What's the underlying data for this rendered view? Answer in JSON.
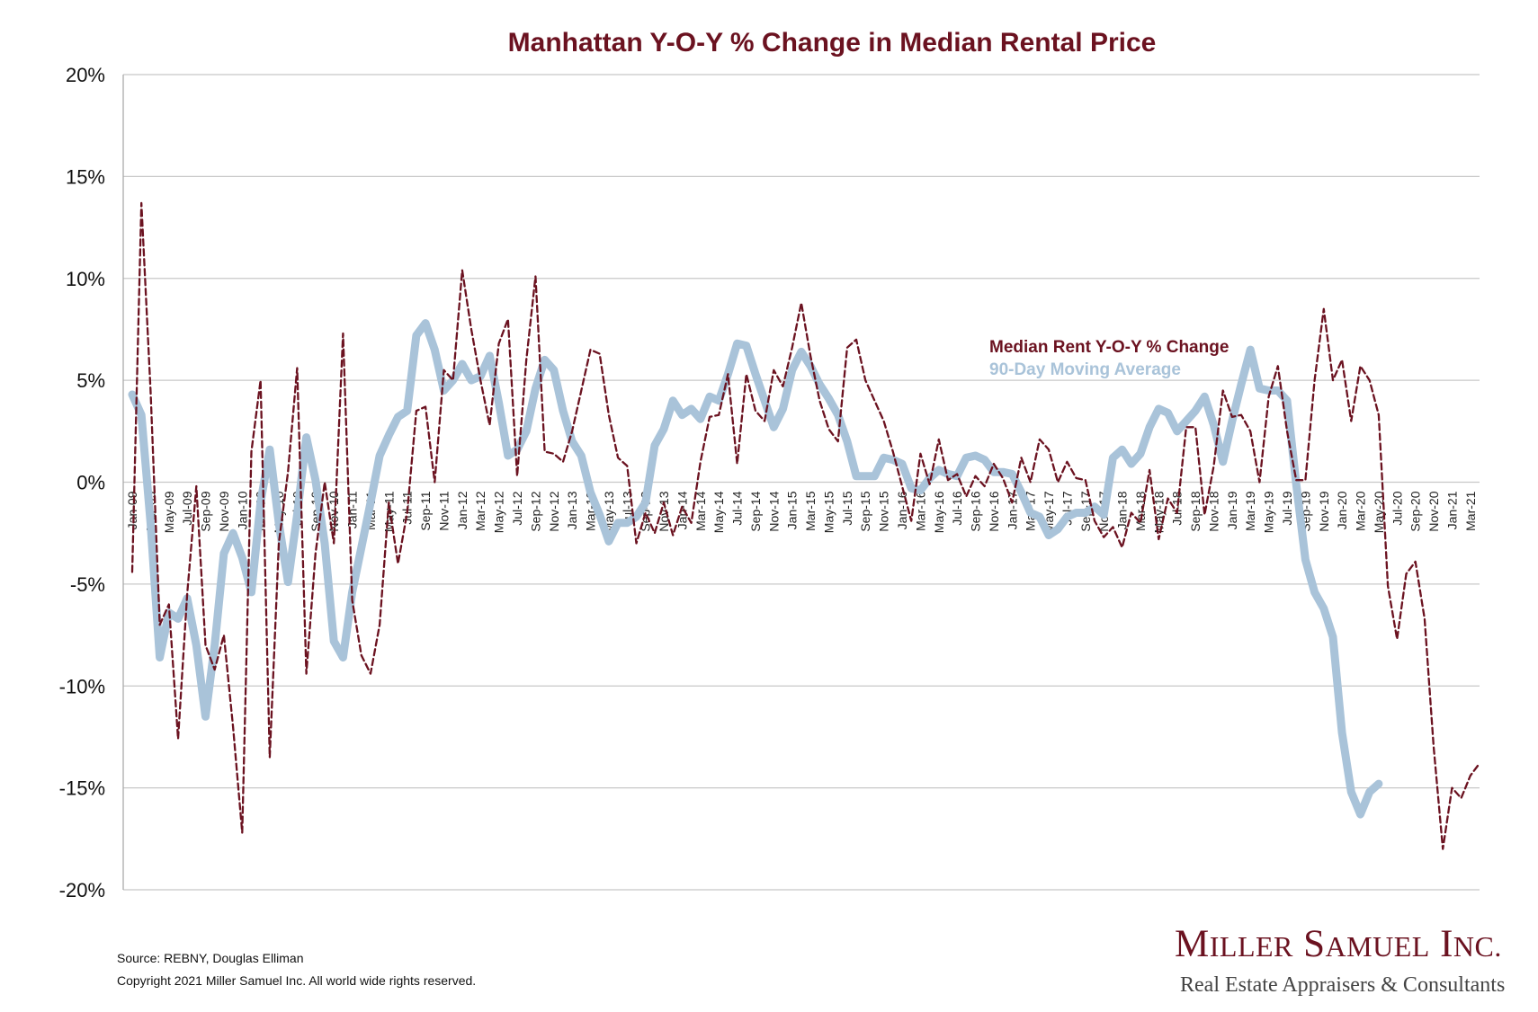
{
  "chart_data": {
    "type": "line",
    "title": "Manhattan Y-O-Y % Change in Median Rental Price",
    "xlabel": "",
    "ylabel": "",
    "ylim": [
      -20,
      20
    ],
    "yticks": [
      "20%",
      "15%",
      "10%",
      "5%",
      "0%",
      "-5%",
      "-10%",
      "-15%",
      "-20%"
    ],
    "ytick_values": [
      20,
      15,
      10,
      5,
      0,
      -5,
      -10,
      -15,
      -20
    ],
    "grid": true,
    "legend_position": "top-right",
    "x_start": "Jan-09",
    "x_end": "Mar-21",
    "x_tick_labels": [
      "Jan-09",
      "Mar-09",
      "May-09",
      "Jul-09",
      "Sep-09",
      "Nov-09",
      "Jan-10",
      "Mar-10",
      "May-10",
      "Jul-10",
      "Sep-10",
      "Nov-10",
      "Jan-11",
      "Mar-11",
      "May-11",
      "Jul-11",
      "Sep-11",
      "Nov-11",
      "Jan-12",
      "Mar-12",
      "May-12",
      "Jul-12",
      "Sep-12",
      "Nov-12",
      "Jan-13",
      "Mar-13",
      "May-13",
      "Jul-13",
      "Sep-13",
      "Nov-13",
      "Jan-14",
      "Mar-14",
      "May-14",
      "Jul-14",
      "Sep-14",
      "Nov-14",
      "Jan-15",
      "Mar-15",
      "May-15",
      "Jul-15",
      "Sep-15",
      "Nov-15",
      "Jan-16",
      "Mar-16",
      "May-16",
      "Jul-16",
      "Sep-16",
      "Nov-16",
      "Jan-17",
      "Mar-17",
      "May-17",
      "Jul-17",
      "Sep-17",
      "Nov-17",
      "Jan-18",
      "Mar-18",
      "May-18",
      "Jul-18",
      "Sep-18",
      "Nov-18",
      "Jan-19",
      "Mar-19",
      "May-19",
      "Jul-19",
      "Sep-19",
      "Nov-19",
      "Jan-20",
      "Mar-20",
      "May-20",
      "Jul-20",
      "Sep-20",
      "Nov-20",
      "Jan-21",
      "Mar-21"
    ],
    "series": [
      {
        "name": "Median Rent Y-O-Y % Change",
        "color": "#6b1220",
        "style": "dashed",
        "values": [
          -4.4,
          13.7,
          4.5,
          -7.0,
          -6.0,
          -12.6,
          -5.5,
          -0.2,
          -8.0,
          -9.2,
          -7.5,
          -12.0,
          -17.2,
          1.5,
          5.0,
          -13.5,
          -3.0,
          0.5,
          5.6,
          -9.4,
          -3.5,
          0.0,
          -3.0,
          7.3,
          -5.8,
          -8.5,
          -9.4,
          -7.0,
          -1.0,
          -4.0,
          -1.5,
          3.5,
          3.7,
          0.0,
          5.5,
          5.0,
          10.4,
          7.5,
          5.0,
          2.8,
          6.8,
          8.0,
          0.3,
          6.0,
          10.1,
          1.5,
          1.4,
          1.0,
          2.5,
          4.5,
          6.5,
          6.3,
          3.3,
          1.2,
          0.8,
          -3.0,
          -1.5,
          -2.5,
          -1.0,
          -2.6,
          -1.2,
          -2.0,
          1.0,
          3.2,
          3.3,
          5.3,
          0.9,
          5.3,
          3.5,
          3.0,
          5.5,
          4.7,
          6.6,
          8.8,
          6.2,
          4.0,
          2.6,
          2.0,
          6.6,
          7.0,
          5.0,
          4.0,
          3.0,
          1.5,
          -0.2,
          -1.9,
          1.4,
          -0.1,
          2.1,
          0.1,
          0.4,
          -0.7,
          0.3,
          -0.2,
          0.9,
          0.2,
          -1.0,
          1.2,
          0.0,
          2.1,
          1.6,
          0.0,
          1.0,
          0.2,
          0.1,
          -1.9,
          -2.7,
          -2.2,
          -3.2,
          -1.5,
          -2.0,
          0.6,
          -2.8,
          -0.8,
          -1.5,
          2.7,
          2.7,
          -1.6,
          0.8,
          4.5,
          3.2,
          3.3,
          2.5,
          0.0,
          4.2,
          5.7,
          2.5,
          0.1,
          0.1,
          5.0,
          8.5,
          5.0,
          6.0,
          3.0,
          5.7,
          5.0,
          3.3,
          -5.1,
          -7.7,
          -4.5,
          -3.9,
          -6.7,
          -13.0,
          -18.0,
          -15.0,
          -15.5,
          -14.4,
          -13.8
        ]
      },
      {
        "name": "90-Day Moving Average",
        "color": "#a9c3d9",
        "style": "solid",
        "values": [
          4.3,
          3.3,
          -2.0,
          -8.6,
          -6.4,
          -6.7,
          -5.7,
          -8.0,
          -11.5,
          -8.0,
          -3.5,
          -2.5,
          -3.7,
          -5.4,
          -1.0,
          1.6,
          -2.0,
          -4.9,
          -1.6,
          2.2,
          0.1,
          -3.0,
          -7.8,
          -8.6,
          -5.4,
          -3.2,
          -1.0,
          1.3,
          2.3,
          3.2,
          3.5,
          7.2,
          7.8,
          6.5,
          4.5,
          5.0,
          5.8,
          5.0,
          5.2,
          6.2,
          3.9,
          1.3,
          1.6,
          2.5,
          4.6,
          6.0,
          5.5,
          3.5,
          2.0,
          1.3,
          -0.5,
          -1.6,
          -2.9,
          -2.0,
          -2.0,
          -1.7,
          -1.0,
          1.8,
          2.6,
          4.0,
          3.3,
          3.6,
          3.1,
          4.2,
          4.0,
          5.3,
          6.8,
          6.7,
          5.3,
          4.0,
          2.7,
          3.6,
          5.5,
          6.4,
          5.7,
          4.8,
          4.1,
          3.3,
          2.0,
          0.3,
          0.3,
          0.3,
          1.2,
          1.1,
          0.9,
          -0.3,
          -0.4,
          0.2,
          0.6,
          0.4,
          0.3,
          1.2,
          1.3,
          1.1,
          0.5,
          0.5,
          0.4,
          -0.5,
          -1.5,
          -1.7,
          -2.6,
          -2.3,
          -1.7,
          -1.5,
          -1.5,
          -1.2,
          -1.6,
          1.2,
          1.6,
          0.9,
          1.4,
          2.7,
          3.6,
          3.4,
          2.5,
          3.0,
          3.5,
          4.2,
          2.8,
          1.0,
          3.0,
          4.8,
          6.5,
          4.6,
          4.5,
          4.5,
          4.0,
          -0.1,
          -3.8,
          -5.4,
          -6.2,
          -7.6,
          -12.3,
          -15.2,
          -16.3,
          -15.2,
          -14.8
        ]
      }
    ]
  },
  "footer": {
    "source": "Source: REBNY, Douglas Elliman",
    "copyright": "Copyright 2021 Miller Samuel Inc.  All world wide rights reserved."
  },
  "logo": {
    "name": "Miller Samuel Inc.",
    "tagline": "Real Estate Appraisers & Consultants"
  }
}
